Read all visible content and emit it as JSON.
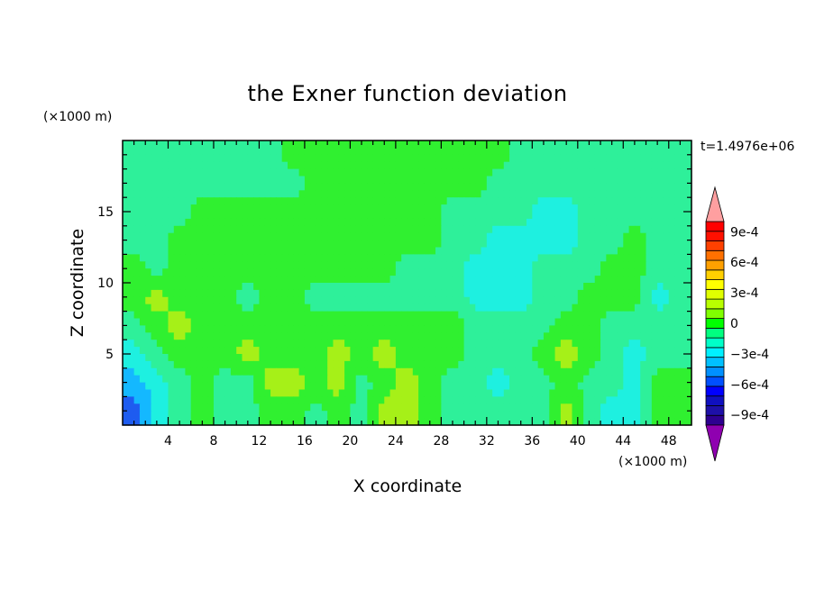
{
  "chart_data": {
    "type": "heatmap",
    "title": "the Exner function deviation",
    "xlabel": "X coordinate",
    "ylabel": "Z coordinate",
    "x_unit": "(×1000 m)",
    "y_unit": "(×1000 m)",
    "time_label": "t=1.4976e+06",
    "xlim": [
      0,
      50
    ],
    "ylim": [
      0,
      20
    ],
    "x_ticks": [
      4,
      8,
      12,
      16,
      20,
      24,
      28,
      32,
      36,
      40,
      44,
      48
    ],
    "y_ticks": [
      5,
      10,
      15
    ],
    "x_grid": [
      1,
      3,
      5,
      7,
      9,
      11,
      13,
      15,
      17,
      19,
      21,
      23,
      25,
      27,
      29,
      31,
      33,
      35,
      37,
      39,
      41,
      43,
      45,
      47,
      49
    ],
    "y_grid": [
      19,
      17,
      15,
      13,
      11,
      9,
      7,
      5,
      3,
      1
    ],
    "z_grid": [
      [
        2,
        2,
        2,
        2,
        2,
        2,
        2,
        3,
        3,
        3,
        3,
        3,
        3,
        3,
        3,
        3,
        3,
        2,
        2,
        2,
        2,
        2,
        2,
        2,
        2
      ],
      [
        2,
        2,
        2,
        2,
        2,
        2,
        2,
        2,
        3,
        3,
        3,
        3,
        3,
        3,
        3,
        3,
        2,
        2,
        2,
        2,
        2,
        2,
        2,
        2,
        2
      ],
      [
        2,
        2,
        2,
        3,
        3,
        3,
        3,
        3,
        3,
        3,
        3,
        3,
        3,
        3,
        2,
        2,
        2,
        2,
        1,
        1,
        2,
        2,
        2,
        2,
        2
      ],
      [
        2,
        2,
        3,
        3,
        3,
        3,
        3,
        3,
        3,
        3,
        3,
        3,
        3,
        3,
        2,
        2,
        1,
        1,
        1,
        1,
        2,
        2,
        3,
        2,
        2
      ],
      [
        3,
        2,
        3,
        3,
        3,
        3,
        3,
        3,
        3,
        3,
        3,
        3,
        2,
        2,
        2,
        1,
        1,
        1,
        2,
        2,
        2,
        3,
        3,
        2,
        2
      ],
      [
        3,
        4,
        3,
        3,
        3,
        2,
        3,
        3,
        2,
        2,
        2,
        2,
        2,
        2,
        2,
        1,
        1,
        1,
        2,
        2,
        3,
        3,
        3,
        1,
        2
      ],
      [
        2,
        3,
        4,
        3,
        3,
        3,
        3,
        3,
        3,
        3,
        3,
        3,
        3,
        3,
        3,
        2,
        2,
        2,
        2,
        3,
        3,
        2,
        2,
        2,
        2
      ],
      [
        1,
        2,
        3,
        3,
        3,
        4,
        3,
        3,
        3,
        4,
        3,
        4,
        3,
        3,
        3,
        2,
        2,
        2,
        3,
        4,
        3,
        2,
        1,
        2,
        2
      ],
      [
        0,
        1,
        2,
        3,
        2,
        2,
        4,
        4,
        3,
        4,
        2,
        3,
        4,
        3,
        2,
        2,
        1,
        2,
        2,
        3,
        2,
        2,
        1,
        3,
        3
      ],
      [
        -1,
        1,
        2,
        3,
        2,
        2,
        3,
        3,
        2,
        3,
        2,
        4,
        4,
        3,
        2,
        2,
        2,
        2,
        2,
        4,
        2,
        1,
        1,
        3,
        3
      ]
    ],
    "colorbar": {
      "levels": [
        -0.0011,
        -0.001,
        -0.0009,
        -0.0008,
        -0.0007,
        -0.0006,
        -0.0005,
        -0.0004,
        -0.0003,
        -0.0002,
        -0.0001,
        0,
        0.0001,
        0.0002,
        0.0003,
        0.0004,
        0.0005,
        0.0006,
        0.0007,
        0.0008,
        0.0009,
        0.001,
        0.0011
      ],
      "labels": [
        "9e-4",
        "6e-4",
        "3e-4",
        "0",
        "−3e-4",
        "−6e-4",
        "−9e-4"
      ],
      "colors": [
        "#8f00b0",
        "#2e0090",
        "#1e10a8",
        "#1010c0",
        "#0000ff",
        "#0050ff",
        "#0090ff",
        "#00c0ff",
        "#00f0ff",
        "#00ffc8",
        "#00ff80",
        "#00ff00",
        "#80ff00",
        "#b8ff00",
        "#e0ff00",
        "#ffff00",
        "#ffd000",
        "#ffa000",
        "#ff7000",
        "#ff4000",
        "#ff1000",
        "#ff0000",
        "#ff9fa0"
      ]
    },
    "level_colors": {
      "-1": "#1e5cf0",
      "0": "#14b8ff",
      "1": "#1ef0e0",
      "2": "#2ef09a",
      "3": "#30f030",
      "4": "#a6f018"
    }
  }
}
